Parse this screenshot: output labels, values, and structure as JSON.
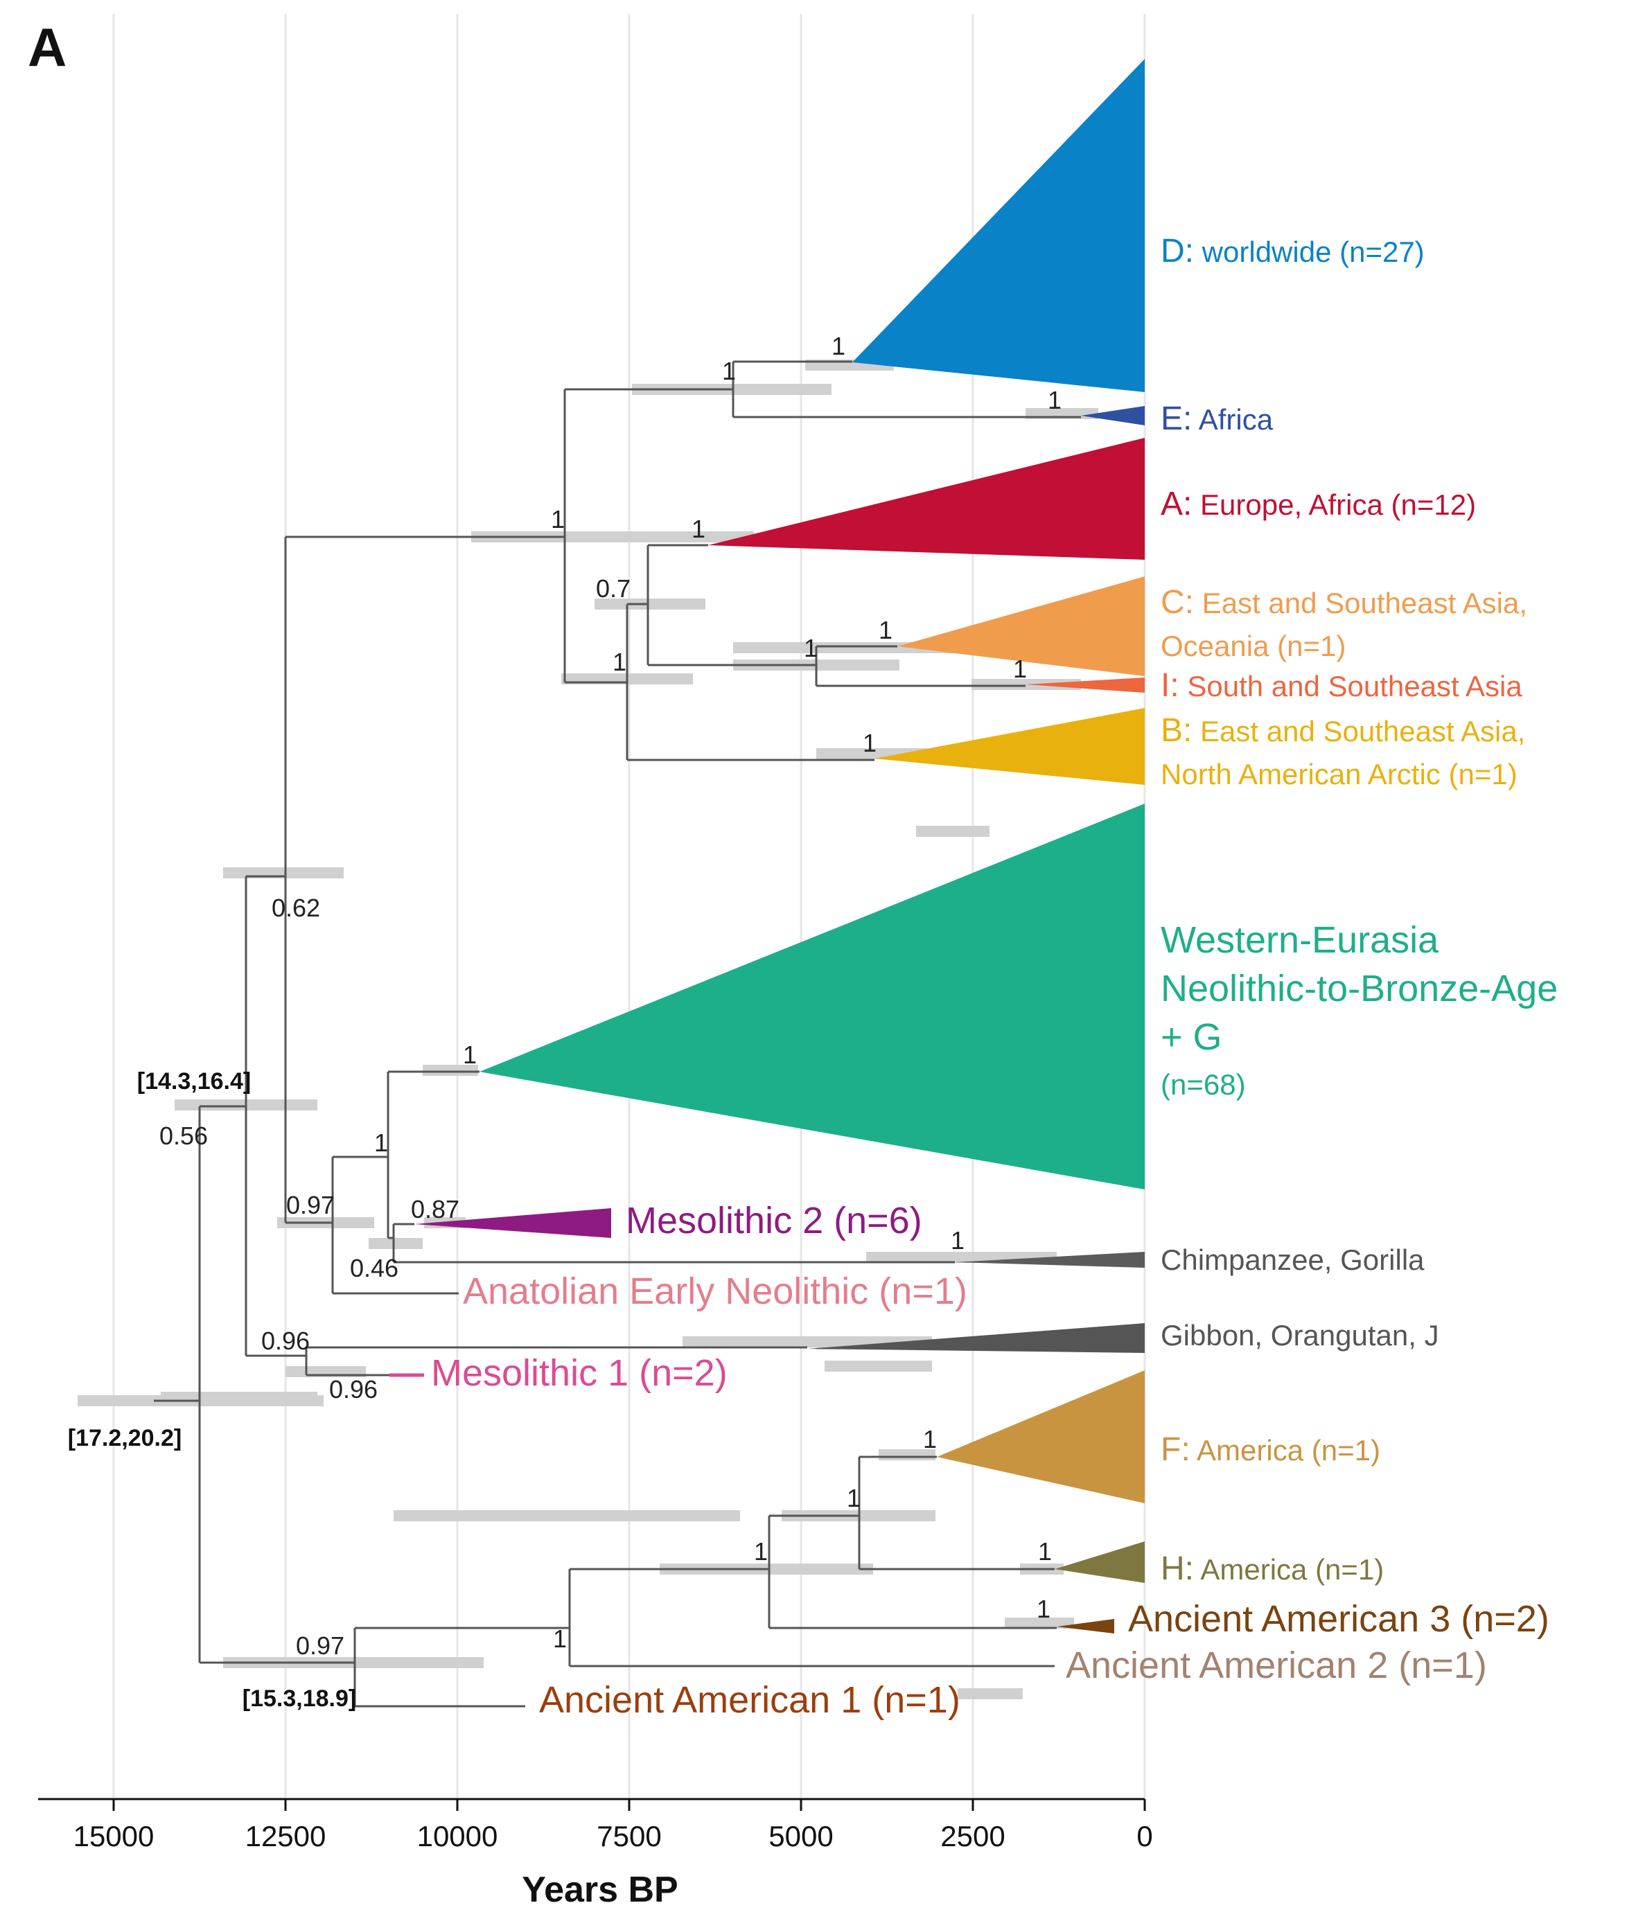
{
  "panel_label": "A",
  "chart_data": {
    "type": "phylogenetic-tree",
    "xlabel": "Years BP",
    "xaxis_reversed": true,
    "xlim": [
      16000,
      0
    ],
    "xticks": [
      15000,
      12500,
      10000,
      7500,
      5000,
      2500,
      0
    ],
    "xtick_labels": [
      "15000",
      "12500",
      "10000",
      "7500",
      "5000",
      "2500",
      "0"
    ],
    "grid": "vertical",
    "node_support": [
      "1",
      "1",
      "1",
      "1",
      "1",
      "0.7",
      "1",
      "1",
      "1",
      "1",
      "1",
      "0.62",
      "0.56",
      "1",
      "1",
      "0.97",
      "0.87",
      "0.46",
      "1",
      "0.96",
      "0.96",
      "1",
      "1",
      "1",
      "1",
      "1",
      "1",
      "0.97"
    ],
    "node_intervals": [
      "[14.3,16.4]",
      "[17.2,20.2]",
      "[15.3,18.9]"
    ],
    "clades": [
      {
        "key": "D",
        "sep": ":",
        "rest": " worldwide (n=27)",
        "color": "#0a82c8"
      },
      {
        "key": "E",
        "sep": ":",
        "rest": " Africa",
        "color": "#2f4fa1"
      },
      {
        "key": "A",
        "sep": ":",
        "rest": " Europe, Africa (n=12)",
        "color": "#c10f35"
      },
      {
        "key": "C",
        "sep": ":",
        "rest": " East and Southeast Asia,",
        "line2": "Oceania (n=1)",
        "color": "#f09c4d"
      },
      {
        "key": "I",
        "sep": ":",
        "rest": " South and Southeast Asia",
        "color": "#ec6640"
      },
      {
        "key": "B",
        "sep": ":",
        "rest": " East and Southeast Asia,",
        "line2": "North American Arctic (n=1)",
        "color": "#e9b10e"
      },
      {
        "key": "F",
        "sep": ":",
        "rest": " America (n=1)",
        "color": "#c99440"
      },
      {
        "key": "H",
        "sep": ":",
        "rest": " America (n=1)",
        "color": "#7e7840"
      }
    ],
    "wena_lines": [
      "Western-Eurasia",
      "Neolithic-to-Bronze-Age",
      "+ G",
      "(n=68)"
    ],
    "other_labels": {
      "chimp": "Chimpanzee, Gorilla",
      "gibbon": "Gibbon, Orangutan, J",
      "meso2": "Mesolithic 2 (n=6)",
      "anatolian": "Anatolian Early Neolithic (n=1)",
      "meso1": "Mesolithic 1 (n=2)",
      "aa3": "Ancient American 3 (n=2)",
      "aa2": "Ancient American 2 (n=1)",
      "aa1": "Ancient American 1 (n=1)"
    },
    "colors": {
      "wena": "#1daf89",
      "meso2": "#8e1b82",
      "chimp": "#5b5b5b",
      "gibbon": "#555555",
      "anatolian": "#e47d8e",
      "meso1": "#dc4a93",
      "aa3": "#7b4310",
      "aa2": "#a38270",
      "aa1": "#9a3f0e",
      "branch": "#555555",
      "interval": "#d0d0d0",
      "grid": "#e6e6e6"
    }
  }
}
